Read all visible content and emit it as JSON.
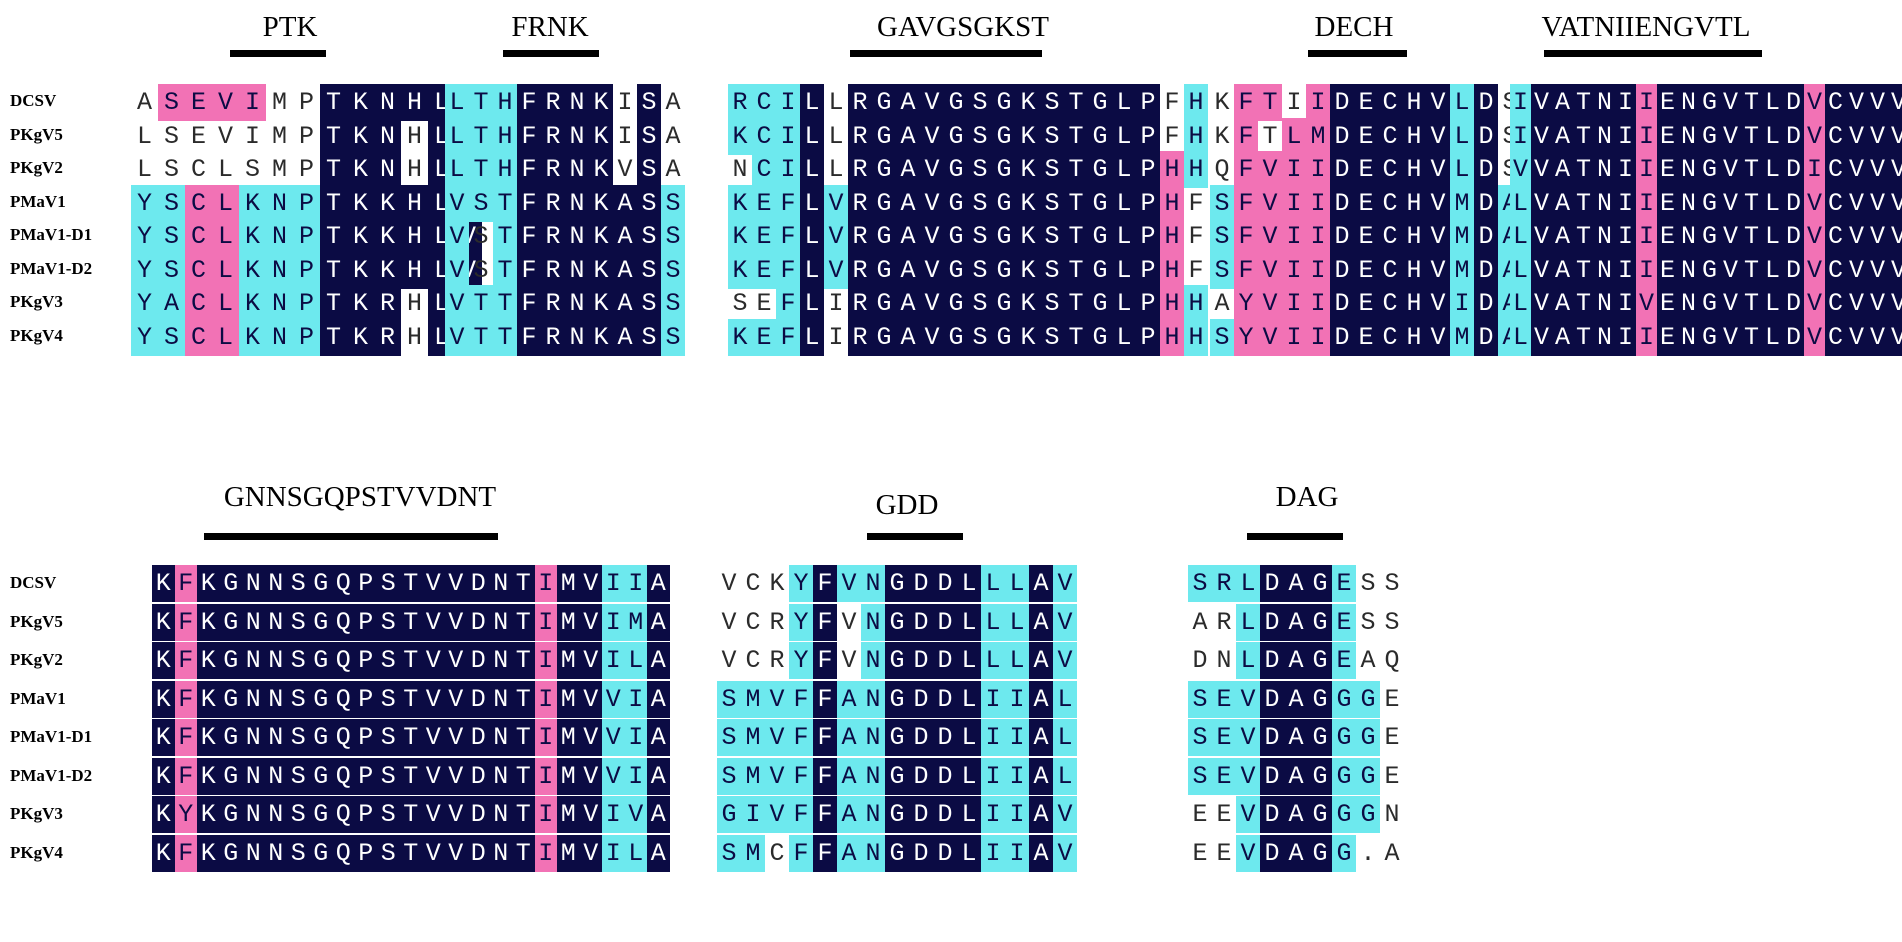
{
  "sequence_names": [
    "DCSV",
    "PKgV5",
    "PKgV2",
    "PMaV1",
    "PMaV1-D1",
    "PMaV1-D2",
    "PKgV3",
    "PKgV4"
  ],
  "color_legend": {
    "identical": "#0b0b44",
    "high_similarity": "#f272b5",
    "partial_similarity": "#6de9ee",
    "none": "#ffffff"
  },
  "blocks": [
    {
      "motif": "PTK",
      "sequences": [
        "ASEVIMPTKNHLV",
        "LSEVIMPTKNHLV",
        "LSCLSMPTKNHLV",
        "YSCLKNPTKKHLV",
        "YSCLKNPTKKHLV",
        "YSCLKNPTKKHLV",
        "YACLKNPTKRHLV",
        "YSCLKNPTKRHLV"
      ],
      "shading": [
        "wppppwwnnnnnn",
        "wwwwwwwnnnwnn",
        "wwwwwwwnnnwnn",
        "ccppcccnnnnnn",
        "ccppcccnnnnnn",
        "ccppcccnnnnnn",
        "ccppcccnnnwnn",
        "ccppcccnnnwnn"
      ]
    },
    {
      "motif": "FRNK",
      "sequences": [
        "LTHFRNKISA",
        "LTHFRNKISA",
        "LTHFRNKVSA",
        "VSTFRNKASS",
        "VSTFRNKASS",
        "VSTFRNKASS",
        "VTTFRNKASS",
        "VTTFRNKASS"
      ],
      "shading": [
        "cccnnnnwnw",
        "cccnnnnwnw",
        "cccnnnnwnw",
        "cccnnnnnnc",
        "cwcnnnnnnc",
        "cwcnnnnnnc",
        "cccnnnnnnc",
        "cccnnnnnnc"
      ]
    },
    {
      "motif": "GAVGSGKST",
      "sequences": [
        "RCILLRGAVGSGKSTGLPFH",
        "KCILLRGAVGSGKSTGLPFH",
        "NCILLRGAVGSGKSTGLPHH",
        "KEFLVRGAVGSGKSTGLPHF",
        "KEFLVRGAVGSGKSTGLPHF",
        "KEFLVRGAVGSGKSTGLPHF",
        "SEFLIRGAVGSGKSTGLPHH",
        "KEFLIRGAVGSGKSTGLPHH"
      ],
      "shading": [
        "cccnwnnnnnnnnnnnnnwc",
        "cccnwnnnnnnnnnnnnnwc",
        "wccnwnnnnnnnnnnnnnpc",
        "cccncnnnnnnnnnnnnnpw",
        "cccncnnnnnnnnnnnnnpw",
        "cccncnnnnnnnnnnnnnpw",
        "wwcnwnnnnnnnnnnnnnpc",
        "cccnwnnnnnnnnnnnnnpc"
      ]
    },
    {
      "motif": "DECH",
      "sequences": [
        "KFTIIDECHVLDS",
        "KFTLMDECHVLDS",
        "QFVIIDECHVLDS",
        "SFVIIDECHVMDA",
        "SFVIIDECHVMDA",
        "SFVIIDECHVMDA",
        "AYVIIDECHVIDA",
        "SYVIIDECHVMDA"
      ],
      "shading": [
        "wppwpnnnnncnw",
        "wpwppnnnnncnw",
        "wppppnnnnncnw",
        "cppppnnnnncnc",
        "cppppnnnnncnc",
        "cppppnnnnncnc",
        "wppppnnnnncnc",
        "cppppnnnnncnc"
      ]
    },
    {
      "motif": "VATNIIENGVTL",
      "sequences": [
        "IVATNIIENGVTLDVCVVV",
        "IVATNIIENGVTLDVCVVV",
        "VVATNIIENGVTLDICVVV",
        "LVATNIIENGVTLDVCVVV",
        "LVATNIIENGVTLDVCVVV",
        "LVATNIIENGVTLDVCVVV",
        "LVATNIVENGVTLDVCVVV",
        "LVATNIIENGVTLDVCVVV"
      ],
      "shading": [
        "cnnnnnpnnnnnnnpnnnn",
        "cnnnnnpnnnnnnnpnnnn",
        "cnnnnnpnnnnnnnpnnnn",
        "cnnnnnpnnnnnnnpnnnn",
        "cnnnnnpnnnnnnnpnnnn",
        "cnnnnnpnnnnnnnpnnnn",
        "cnnnnnpnnnnnnnpnnnn",
        "cnnnnnpnnnnnnnpnnnn"
      ]
    },
    {
      "motif": "GNNSGQPSTVVDNT",
      "sequences": [
        "KFKGNNSGQPSTVVDNTIMVIIA",
        "KFKGNNSGQPSTVVDNTIMVIMA",
        "KFKGNNSGQPSTVVDNTIMVILA",
        "KFKGNNSGQPSTVVDNTIMVVIA",
        "KFKGNNSGQPSTVVDNTIMVVIA",
        "KFKGNNSGQPSTVVDNTIMVVIA",
        "KYKGNNSGQPSTVVDNTIMVIVA",
        "KFKGNNSGQPSTVVDNTIMVILA"
      ],
      "shading": [
        "npnnnnnnnnnnnnnnnpnnccn",
        "npnnnnnnnnnnnnnnnpnnccn",
        "npnnnnnnnnnnnnnnnpnnccn",
        "npnnnnnnnnnnnnnnnpnnccn",
        "npnnnnnnnnnnnnnnnpnnccn",
        "npnnnnnnnnnnnnnnnpnnccn",
        "npnnnnnnnnnnnnnnnpnnccn",
        "npnnnnnnnnnnnnnnnpnnccn"
      ]
    },
    {
      "motif": "GDD",
      "sequences": [
        "VCKYFVNGDDLLLAV",
        "VCRYFVNGDDLLLAV",
        "VCRYFVNGDDLLLAV",
        "SMVFFANGDDLIIAL",
        "SMVFFANGDDLIIAL",
        "SMVFFANGDDLIIAL",
        "GIVFFANGDDLIIAV",
        "SMCFFANGDDLIIAV"
      ],
      "shading": [
        "wwwcnccnnnnccnc",
        "wwwcnwcnnnnccnc",
        "wwwcnwcnnnnccnc",
        "ccccnccnnnnccnc",
        "ccccnccnnnnccnc",
        "ccccnccnnnnccnc",
        "ccccnccnnnnccnc",
        "ccwcnccnnnnccnc"
      ]
    },
    {
      "motif": "DAG",
      "sequences": [
        "SRLDAGESS",
        "ARLDAGESS",
        "DNLDAGEAQ",
        "SEVDAGGGE",
        "SEVDAGGGE",
        "SEVDAGGGE",
        "EEVDAGGGN",
        "EEVDAGG.A"
      ],
      "shading": [
        "cccnnncww",
        "wwcnnncww",
        "wwcnnncww",
        "cccnnnccw",
        "cccnnnccw",
        "cccnnnccw",
        "wwcnnnccw",
        "wwcnnncww"
      ]
    }
  ]
}
